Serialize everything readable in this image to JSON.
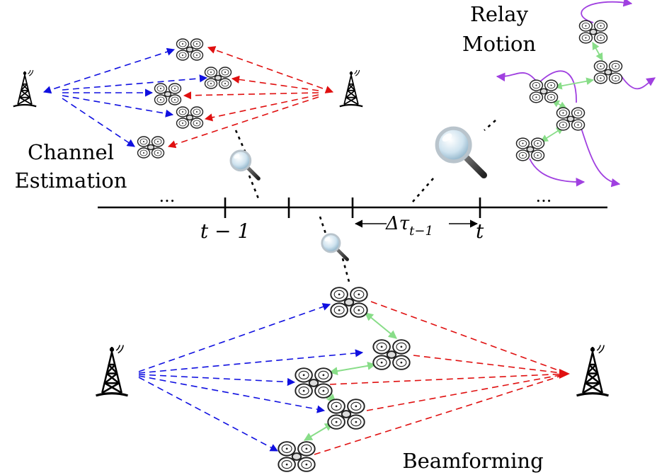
{
  "labels": {
    "channel_estimation_line1": "Channel",
    "channel_estimation_line2": "Estimation",
    "relay_motion_line1": "Relay",
    "relay_motion_line2": "Motion",
    "beamforming": "Beamforming",
    "time_t_minus_1": "t − 1",
    "time_t": "t",
    "delta_tau": "Δτ",
    "delta_tau_sub": "t−1",
    "ellipsis": "..."
  },
  "colors": {
    "source_link": "#1010e0",
    "destination_link": "#e01010",
    "relay_link": "#88dd88",
    "relay_motion": "#a040e0",
    "timeline": "#000000"
  },
  "icons": {
    "tower": "radio-tower-icon",
    "drone": "quadcopter-drone-icon",
    "magnifier": "magnifying-glass-icon"
  }
}
